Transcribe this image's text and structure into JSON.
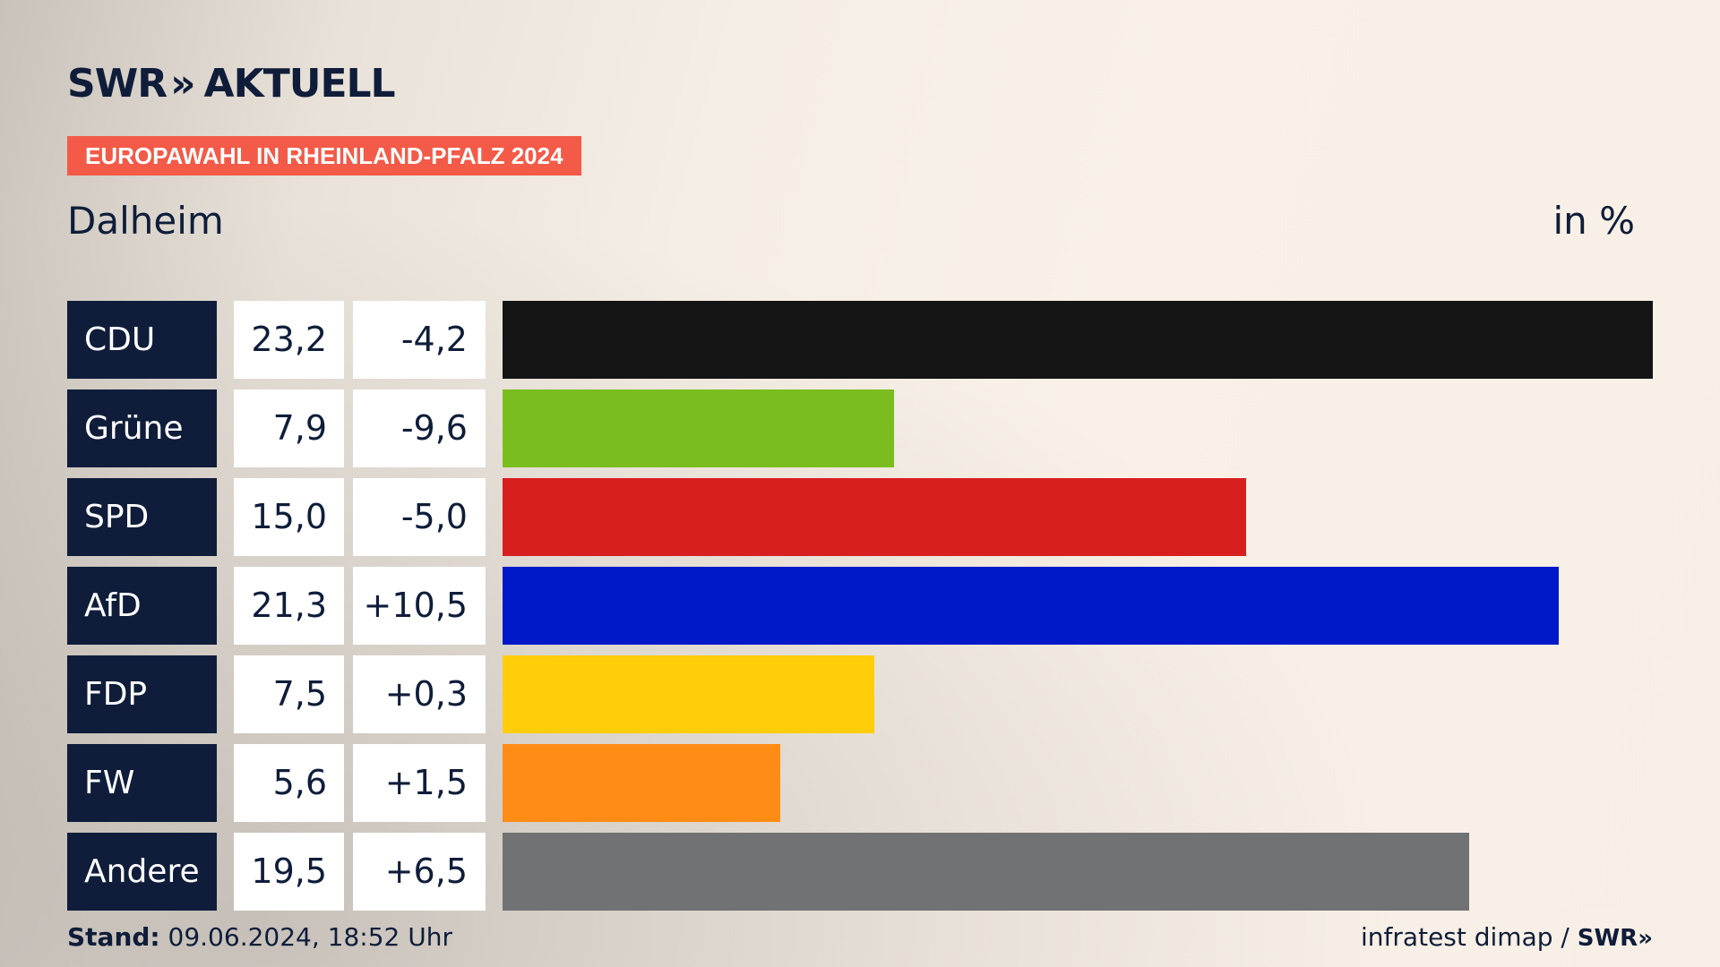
{
  "brand": {
    "logo_text": "SWR",
    "logo_chevrons": "»",
    "logo_suffix": "AKTUELL"
  },
  "header": {
    "tag": "EUROPAWAHL IN RHEINLAND-PFALZ 2024",
    "region": "Dalheim",
    "unit": "in %"
  },
  "colors": {
    "navy": "#0f1d3a",
    "tag_red": "#f35a47"
  },
  "chart_data": {
    "type": "bar",
    "orientation": "horizontal",
    "title": "Dalheim",
    "unit": "in %",
    "xlim": [
      0,
      23.2
    ],
    "categories": [
      "CDU",
      "Grüne",
      "SPD",
      "AfD",
      "FDP",
      "FW",
      "Andere"
    ],
    "values": [
      23.2,
      7.9,
      15.0,
      21.3,
      7.5,
      5.6,
      19.5
    ],
    "rows": [
      {
        "party": "CDU",
        "value": 23.2,
        "value_label": "23,2",
        "diff_label": "-4,2",
        "color": "#141414"
      },
      {
        "party": "Grüne",
        "value": 7.9,
        "value_label": "7,9",
        "diff_label": "-9,6",
        "color": "#7bbd1e"
      },
      {
        "party": "SPD",
        "value": 15.0,
        "value_label": "15,0",
        "diff_label": "-5,0",
        "color": "#d71f1f"
      },
      {
        "party": "AfD",
        "value": 21.3,
        "value_label": "21,3",
        "diff_label": "+10,5",
        "color": "#0019c8"
      },
      {
        "party": "FDP",
        "value": 7.5,
        "value_label": "7,5",
        "diff_label": "+0,3",
        "color": "#ffcd0a"
      },
      {
        "party": "FW",
        "value": 5.6,
        "value_label": "5,6",
        "diff_label": "+1,5",
        "color": "#ff8c14"
      },
      {
        "party": "Andere",
        "value": 19.5,
        "value_label": "19,5",
        "diff_label": "+6,5",
        "color": "#717274"
      }
    ]
  },
  "footer": {
    "stand_label": "Stand:",
    "stand_value": "09.06.2024, 18:52 Uhr",
    "source": "infratest dimap /",
    "source_logo": "SWR»"
  }
}
